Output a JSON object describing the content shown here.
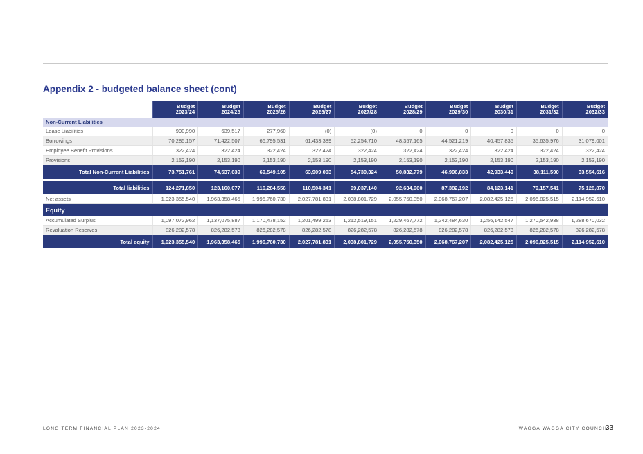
{
  "title": "Appendix 2 - budgeted balance sheet (cont)",
  "columns": [
    {
      "line1": "Budget",
      "line2": "2023/24"
    },
    {
      "line1": "Budget",
      "line2": "2024/25"
    },
    {
      "line1": "Budget",
      "line2": "2025/26"
    },
    {
      "line1": "Budget",
      "line2": "2026/27"
    },
    {
      "line1": "Budget",
      "line2": "2027/28"
    },
    {
      "line1": "Budget",
      "line2": "2028/29"
    },
    {
      "line1": "Budget",
      "line2": "2029/30"
    },
    {
      "line1": "Budget",
      "line2": "2030/31"
    },
    {
      "line1": "Budget",
      "line2": "2031/32"
    },
    {
      "line1": "Budget",
      "line2": "2032/33"
    }
  ],
  "sections": {
    "non_current_liabilities": "Non-Current Liabilities",
    "equity": "Equity"
  },
  "rows": {
    "lease": {
      "label": "Lease Liabilities",
      "values": [
        "990,990",
        "639,517",
        "277,960",
        "(0)",
        "(0)",
        "0",
        "0",
        "0",
        "0",
        "0"
      ]
    },
    "borrowings": {
      "label": "Borrowings",
      "values": [
        "70,285,157",
        "71,422,507",
        "66,795,531",
        "61,433,389",
        "52,254,710",
        "48,357,165",
        "44,521,219",
        "40,457,835",
        "35,635,976",
        "31,079,001"
      ]
    },
    "employee": {
      "label": "Employee Benefit Provisions",
      "values": [
        "322,424",
        "322,424",
        "322,424",
        "322,424",
        "322,424",
        "322,424",
        "322,424",
        "322,424",
        "322,424",
        "322,424"
      ]
    },
    "provisions": {
      "label": "Provisions",
      "values": [
        "2,153,190",
        "2,153,190",
        "2,153,190",
        "2,153,190",
        "2,153,190",
        "2,153,190",
        "2,153,190",
        "2,153,190",
        "2,153,190",
        "2,153,190"
      ]
    },
    "total_ncl": {
      "label": "Total Non-Current Liabilities",
      "values": [
        "73,751,761",
        "74,537,639",
        "69,549,105",
        "63,909,003",
        "54,730,324",
        "50,832,779",
        "46,996,833",
        "42,933,449",
        "38,111,590",
        "33,554,616"
      ]
    },
    "total_liabilities": {
      "label": "Total liabilities",
      "values": [
        "124,271,850",
        "123,160,077",
        "116,284,556",
        "110,504,341",
        "99,037,140",
        "92,634,960",
        "87,382,192",
        "84,123,141",
        "79,157,541",
        "75,128,870"
      ]
    },
    "net_assets": {
      "label": "Net assets",
      "values": [
        "1,923,355,540",
        "1,963,358,465",
        "1,996,760,730",
        "2,027,781,831",
        "2,038,801,729",
        "2,055,750,350",
        "2,068,767,207",
        "2,082,425,125",
        "2,096,825,515",
        "2,114,952,610"
      ]
    },
    "accumulated": {
      "label": "Accumulated Surplus",
      "values": [
        "1,097,072,962",
        "1,137,075,887",
        "1,170,478,152",
        "1,201,499,253",
        "1,212,519,151",
        "1,229,467,772",
        "1,242,484,630",
        "1,256,142,547",
        "1,270,542,938",
        "1,288,670,032"
      ]
    },
    "revaluation": {
      "label": "Revaluation Reserves",
      "values": [
        "826,282,578",
        "826,282,578",
        "826,282,578",
        "826,282,578",
        "826,282,578",
        "826,282,578",
        "826,282,578",
        "826,282,578",
        "826,282,578",
        "826,282,578"
      ]
    },
    "total_equity": {
      "label": "Total equity",
      "values": [
        "1,923,355,540",
        "1,963,358,465",
        "1,996,760,730",
        "2,027,781,831",
        "2,038,801,729",
        "2,055,750,350",
        "2,068,767,207",
        "2,082,425,125",
        "2,096,825,515",
        "2,114,952,610"
      ]
    }
  },
  "footer": {
    "left": "LONG TERM FINANCIAL PLAN 2023-2024",
    "right": "WAGGA WAGGA CITY COUNCIL",
    "page": "33"
  }
}
